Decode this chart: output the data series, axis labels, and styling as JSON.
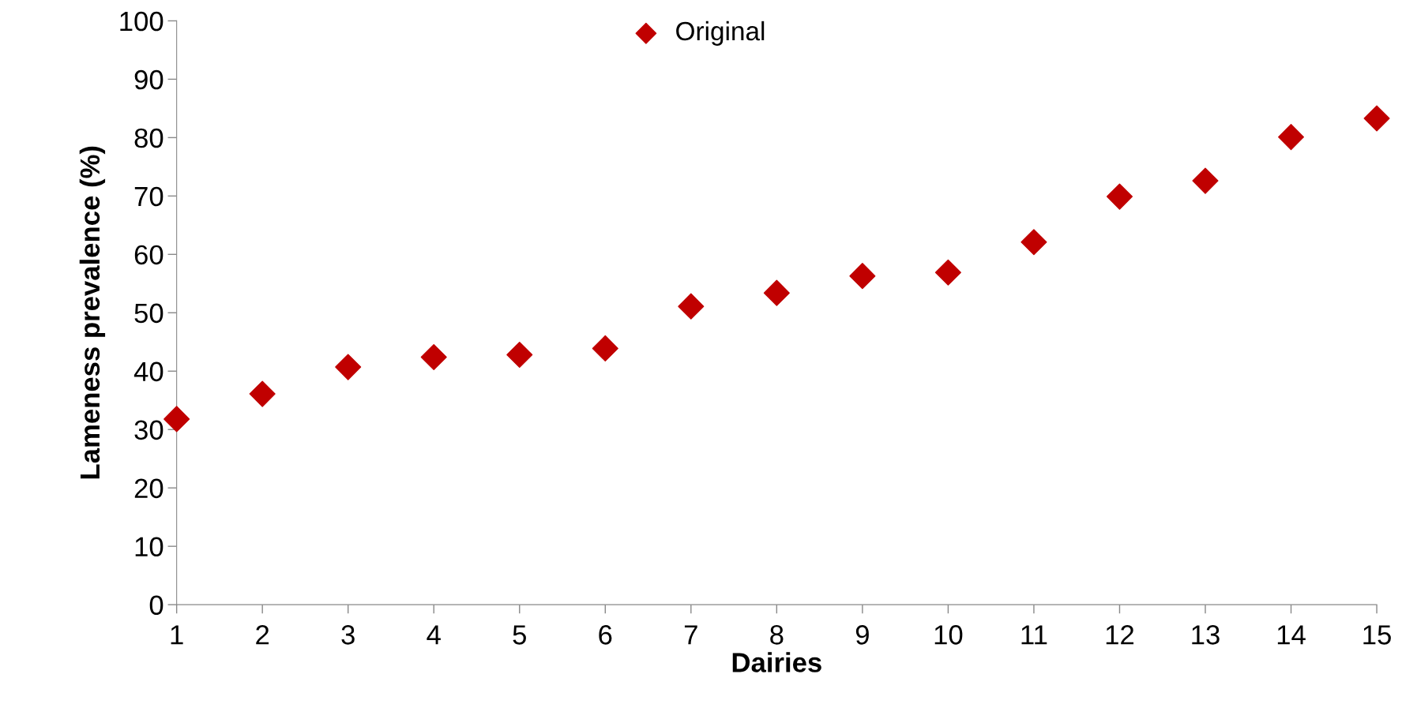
{
  "chart_data": {
    "type": "scatter",
    "xlabel": "Dairies",
    "ylabel": "Lameness prevalence (%)",
    "x": [
      1,
      2,
      3,
      4,
      5,
      6,
      7,
      8,
      9,
      10,
      11,
      12,
      13,
      14,
      15
    ],
    "series": [
      {
        "name": "Original",
        "color": "#c00000",
        "values": [
          31.8,
          36.1,
          40.7,
          42.4,
          42.8,
          43.9,
          51.1,
          53.4,
          56.3,
          56.9,
          62.1,
          69.9,
          72.6,
          80.1,
          83.3
        ]
      }
    ],
    "xlim": [
      1,
      15
    ],
    "xticks": [
      1,
      2,
      3,
      4,
      5,
      6,
      7,
      8,
      9,
      10,
      11,
      12,
      13,
      14,
      15
    ],
    "ylim": [
      0,
      100
    ],
    "yticks": [
      0,
      10,
      20,
      30,
      40,
      50,
      60,
      70,
      80,
      90,
      100
    ],
    "grid": false,
    "legend": "top",
    "marker": "diamond"
  }
}
